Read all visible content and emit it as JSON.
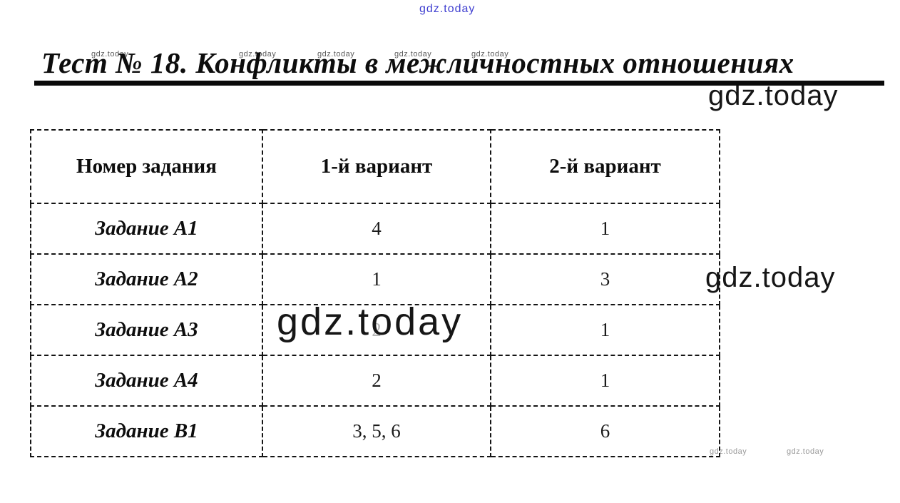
{
  "title": {
    "text": "Тест № 18. Конфликты в межличностных отношениях"
  },
  "watermark": {
    "text": "gdz.today",
    "blue_color": "#3f3fd0",
    "dark_color": "#161616",
    "gray_color": "#9a9a9a"
  },
  "table": {
    "headers": [
      "Номер задания",
      "1-й вариант",
      "2-й вариант"
    ],
    "rows": [
      {
        "label": "Задание А1",
        "variant1": "4",
        "variant2": "1"
      },
      {
        "label": "Задание А2",
        "variant1": "1",
        "variant2": "3"
      },
      {
        "label": "Задание А3",
        "variant1": "2",
        "variant2": "1"
      },
      {
        "label": "Задание А4",
        "variant1": "2",
        "variant2": "1"
      },
      {
        "label": "Задание В1",
        "variant1": "3, 5, 6",
        "variant2": "6"
      }
    ]
  }
}
